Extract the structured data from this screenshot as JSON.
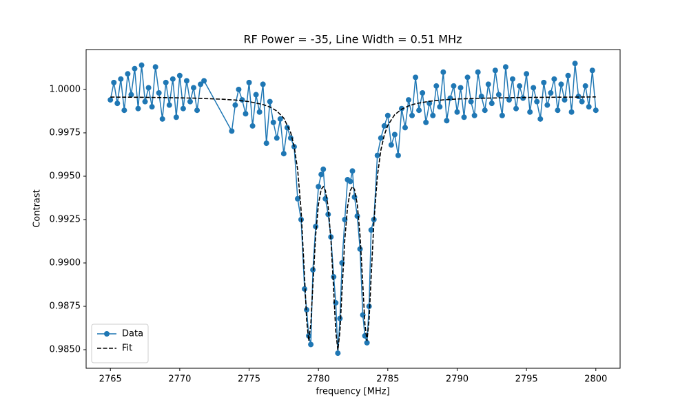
{
  "chart_data": {
    "type": "line",
    "title": "RF Power = -35, Line Width = 0.51 MHz",
    "xlabel": "frequency [MHz]",
    "ylabel": "Contrast",
    "xlim": [
      2763.25,
      2801.75
    ],
    "ylim": [
      0.98393,
      1.0023
    ],
    "xticks": [
      2765,
      2770,
      2775,
      2780,
      2785,
      2790,
      2795,
      2800
    ],
    "yticks": [
      {
        "value": 0.985,
        "label": "0.9850"
      },
      {
        "value": 0.9875,
        "label": "0.9875"
      },
      {
        "value": 0.99,
        "label": "0.9900"
      },
      {
        "value": 0.9925,
        "label": "0.9925"
      },
      {
        "value": 0.995,
        "label": "0.9950"
      },
      {
        "value": 0.9975,
        "label": "0.9975"
      },
      {
        "value": 1.0,
        "label": "1.0000"
      }
    ],
    "legend": "lower left",
    "grid": false,
    "series": [
      {
        "name": "Data",
        "color": "#1f77b4",
        "marker": "o",
        "linestyle": "solid",
        "x": [
          2765,
          2765.25,
          2765.5,
          2765.75,
          2766,
          2766.25,
          2766.5,
          2766.75,
          2767,
          2767.25,
          2767.5,
          2767.75,
          2768,
          2768.25,
          2768.5,
          2768.75,
          2769,
          2769.25,
          2769.5,
          2769.75,
          2770,
          2770.25,
          2770.5,
          2770.75,
          2771,
          2771.25,
          2771.5,
          2771.75,
          2773.75,
          2774,
          2774.25,
          2774.5,
          2774.75,
          2775,
          2775.25,
          2775.5,
          2775.75,
          2776,
          2776.25,
          2776.5,
          2776.75,
          2777,
          2777.25,
          2777.5,
          2777.75,
          2778,
          2778.25,
          2778.5,
          2778.75,
          2779,
          2779.15,
          2779.3,
          2779.45,
          2779.6,
          2779.8,
          2780,
          2780.2,
          2780.35,
          2780.5,
          2780.7,
          2780.9,
          2781.1,
          2781.25,
          2781.4,
          2781.55,
          2781.7,
          2781.9,
          2782.1,
          2782.3,
          2782.45,
          2782.6,
          2782.8,
          2783,
          2783.2,
          2783.35,
          2783.5,
          2783.65,
          2783.8,
          2784,
          2784.25,
          2784.5,
          2784.75,
          2785,
          2785.25,
          2785.5,
          2785.75,
          2786,
          2786.25,
          2786.5,
          2786.75,
          2787,
          2787.25,
          2787.5,
          2787.75,
          2788,
          2788.25,
          2788.5,
          2788.75,
          2789,
          2789.25,
          2789.5,
          2789.75,
          2790,
          2790.25,
          2790.5,
          2790.75,
          2791,
          2791.25,
          2791.5,
          2791.75,
          2792,
          2792.25,
          2792.5,
          2792.75,
          2793,
          2793.25,
          2793.5,
          2793.75,
          2794,
          2794.25,
          2794.5,
          2794.75,
          2795,
          2795.25,
          2795.5,
          2795.75,
          2796,
          2796.25,
          2796.5,
          2796.75,
          2797,
          2797.25,
          2797.5,
          2797.75,
          2798,
          2798.25,
          2798.5,
          2798.75,
          2799,
          2799.25,
          2799.5,
          2799.75,
          2800
        ],
        "values": [
          0.9994,
          1.0004,
          0.9992,
          1.0006,
          0.9988,
          1.0009,
          0.9997,
          1.0012,
          0.9989,
          1.0014,
          0.9993,
          1.0001,
          0.999,
          1.0013,
          0.9998,
          0.9983,
          1.0004,
          0.9991,
          1.0006,
          0.9984,
          1.0008,
          0.9989,
          1.0005,
          0.9993,
          1.0001,
          0.9988,
          1.0003,
          1.0005,
          0.9976,
          0.9991,
          1.0,
          0.9994,
          0.9986,
          1.0004,
          0.9979,
          0.9997,
          0.9987,
          1.0003,
          0.9969,
          0.9993,
          0.9981,
          0.9972,
          0.9983,
          0.9963,
          0.9978,
          0.9972,
          0.9967,
          0.9937,
          0.9925,
          0.9885,
          0.9873,
          0.9858,
          0.9853,
          0.9896,
          0.9921,
          0.9944,
          0.9951,
          0.9954,
          0.9937,
          0.9928,
          0.9915,
          0.9892,
          0.9877,
          0.9848,
          0.9868,
          0.99,
          0.9925,
          0.9948,
          0.9947,
          0.9953,
          0.9938,
          0.9927,
          0.9908,
          0.987,
          0.9858,
          0.9854,
          0.9875,
          0.9919,
          0.9925,
          0.9962,
          0.9972,
          0.9979,
          0.9985,
          0.9968,
          0.9974,
          0.9962,
          0.9989,
          0.9978,
          0.9994,
          0.9985,
          1.0007,
          0.9988,
          0.9998,
          0.9981,
          0.9992,
          0.9985,
          1.0002,
          0.999,
          1.001,
          0.9982,
          0.9995,
          1.0002,
          0.9987,
          1.0001,
          0.9984,
          1.0007,
          0.9993,
          0.9985,
          1.001,
          0.9996,
          0.9988,
          1.0003,
          0.9992,
          1.0011,
          0.9997,
          0.9985,
          1.0013,
          0.9994,
          1.0006,
          0.9989,
          1.0002,
          0.9995,
          1.0009,
          0.9987,
          1.0001,
          0.9993,
          0.9983,
          1.0004,
          0.9991,
          0.9998,
          1.0006,
          0.9988,
          1.0003,
          0.9994,
          1.0008,
          0.9987,
          1.0015,
          0.9996,
          0.9993,
          1.0002,
          0.999,
          1.0011,
          0.9988
        ]
      },
      {
        "name": "Fit",
        "color": "#000000",
        "marker": "none",
        "linestyle": "dashed",
        "x": [
          2765,
          2767,
          2769,
          2771,
          2773,
          2774,
          2775,
          2776,
          2776.5,
          2777,
          2777.5,
          2778,
          2778.25,
          2778.5,
          2778.75,
          2779,
          2779.15,
          2779.3,
          2779.45,
          2779.6,
          2779.8,
          2780,
          2780.2,
          2780.35,
          2780.5,
          2780.7,
          2780.9,
          2781.1,
          2781.25,
          2781.4,
          2781.55,
          2781.7,
          2781.9,
          2782.1,
          2782.3,
          2782.45,
          2782.6,
          2782.8,
          2783,
          2783.2,
          2783.35,
          2783.5,
          2783.65,
          2783.8,
          2784,
          2784.25,
          2784.5,
          2784.75,
          2785,
          2785.5,
          2786,
          2786.5,
          2787,
          2788,
          2789,
          2790,
          2792,
          2795,
          2800
        ],
        "values": [
          0.99956,
          0.99955,
          0.99953,
          0.9995,
          0.99944,
          0.99939,
          0.9993,
          0.99913,
          0.99899,
          0.99876,
          0.99835,
          0.99751,
          0.99672,
          0.99538,
          0.99303,
          0.98918,
          0.9867,
          0.98551,
          0.98648,
          0.98874,
          0.99159,
          0.99338,
          0.99424,
          0.9944,
          0.99418,
          0.99324,
          0.99135,
          0.9884,
          0.98605,
          0.98498,
          0.98605,
          0.9884,
          0.99135,
          0.99324,
          0.99418,
          0.9944,
          0.99424,
          0.99338,
          0.99159,
          0.98874,
          0.98648,
          0.98551,
          0.9867,
          0.98918,
          0.99238,
          0.99501,
          0.9965,
          0.99738,
          0.99793,
          0.99855,
          0.99886,
          0.99905,
          0.99918,
          0.99932,
          0.9994,
          0.99945,
          0.9995,
          0.99954,
          0.99957
        ]
      }
    ]
  }
}
